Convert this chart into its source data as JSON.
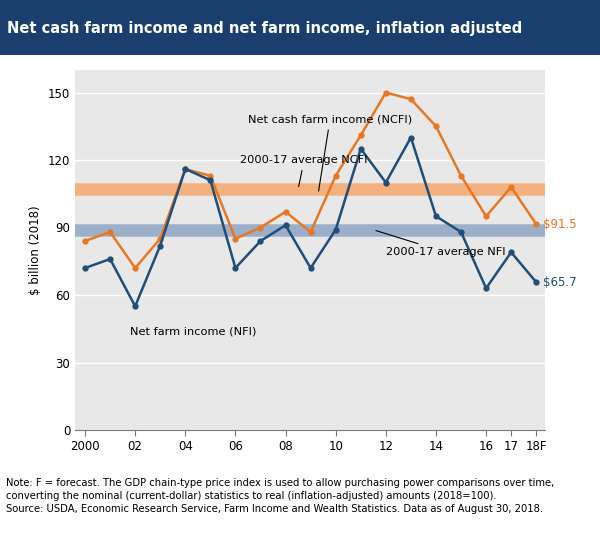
{
  "title": "Net cash farm income and net farm income, inflation adjusted",
  "ylabel": "$ billion (2018)",
  "note_line1": "Note: F = forecast. The GDP chain-type price index is used to allow purchasing power comparisons over time,",
  "note_line2": "converting the nominal (current-dollar) statistics to real (inflation-adjusted) amounts (2018=100).",
  "note_line3": "Source: USDA, Economic Research Service, Farm Income and Wealth Statistics. Data as of August 30, 2018.",
  "years": [
    2000,
    2001,
    2002,
    2003,
    2004,
    2005,
    2006,
    2007,
    2008,
    2009,
    2010,
    2011,
    2012,
    2013,
    2014,
    2015,
    2016,
    2017,
    2018
  ],
  "x_tick_labels": [
    "2000",
    "02",
    "04",
    "06",
    "08",
    "10",
    "12",
    "14",
    "16",
    "17",
    "18F"
  ],
  "x_tick_positions": [
    2000,
    2002,
    2004,
    2006,
    2008,
    2010,
    2012,
    2014,
    2016,
    2017,
    2018
  ],
  "ncfi": [
    84,
    88,
    72,
    85,
    116,
    113,
    85,
    90,
    97,
    88,
    113,
    131,
    150,
    147,
    135,
    113,
    95,
    108,
    91.5
  ],
  "nfi": [
    72,
    76,
    55,
    82,
    116,
    111,
    72,
    84,
    91,
    72,
    89,
    125,
    110,
    130,
    95,
    88,
    63,
    79,
    65.7
  ],
  "avg_ncfi": 107,
  "avg_nfi": 89,
  "ncfi_color": "#E87722",
  "nfi_color": "#1F4E79",
  "avg_ncfi_color": "#F5B080",
  "avg_nfi_color": "#9BAFC8",
  "title_bg_color_left": "#1A3F6F",
  "title_bg_color_right": "#2E6DA4",
  "title_text_color": "#FFFFFF",
  "plot_bg_color": "#E8E8E8",
  "fig_bg_color": "#FFFFFF",
  "outer_bg_color": "#FFFFFF",
  "ylim": [
    0,
    160
  ],
  "yticks": [
    0,
    30,
    60,
    90,
    120,
    150
  ],
  "end_label_ncfi": "$91.5",
  "end_label_nfi": "$65.7",
  "ncfi_label": "Net cash farm income (NCFI)",
  "nfi_label": "Net farm income (NFI)",
  "avg_ncfi_label": "2000-17 average NCFI",
  "avg_nfi_label": "2000-17 average NFI"
}
